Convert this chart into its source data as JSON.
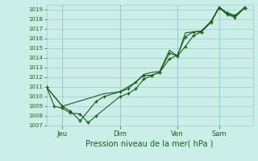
{
  "background_color": "#cceee8",
  "grid_color": "#99cccc",
  "line_color": "#1a5c1a",
  "title": "Pression niveau de la mer( hPa )",
  "ylim": [
    1007,
    1019.5
  ],
  "yticks": [
    1007,
    1008,
    1009,
    1010,
    1011,
    1012,
    1013,
    1014,
    1015,
    1016,
    1017,
    1018,
    1019
  ],
  "xtick_labels": [
    "Jeu",
    "Dim",
    "Ven",
    "Sam"
  ],
  "xtick_positions": [
    0.08,
    0.37,
    0.66,
    0.87
  ],
  "xlim": [
    0.0,
    1.04
  ],
  "series1_x": [
    0.0,
    0.04,
    0.08,
    0.12,
    0.17,
    0.21,
    0.25,
    0.37,
    0.41,
    0.45,
    0.49,
    0.53,
    0.57,
    0.62,
    0.66,
    0.7,
    0.74,
    0.78,
    0.83,
    0.87,
    0.91,
    0.95,
    1.0
  ],
  "series1_y": [
    1011.0,
    1009.0,
    1008.8,
    1008.3,
    1008.2,
    1007.3,
    1008.0,
    1010.0,
    1010.3,
    1010.8,
    1011.8,
    1012.2,
    1012.5,
    1013.9,
    1014.3,
    1016.2,
    1016.7,
    1016.7,
    1017.7,
    1019.2,
    1018.7,
    1018.4,
    1019.2
  ],
  "series2_x": [
    0.0,
    0.08,
    0.12,
    0.17,
    0.25,
    0.29,
    0.37,
    0.41,
    0.45,
    0.49,
    0.53,
    0.57,
    0.62,
    0.66,
    0.7,
    0.74,
    0.78,
    0.83,
    0.87,
    0.91,
    0.95,
    1.0
  ],
  "series2_y": [
    1011.0,
    1009.0,
    1008.5,
    1007.5,
    1009.5,
    1010.0,
    1010.5,
    1010.8,
    1011.5,
    1012.2,
    1012.2,
    1012.5,
    1014.5,
    1014.2,
    1015.2,
    1016.3,
    1016.7,
    1017.8,
    1019.2,
    1018.5,
    1018.2,
    1019.2
  ],
  "series3_x": [
    0.0,
    0.08,
    0.29,
    0.37,
    0.41,
    0.45,
    0.49,
    0.53,
    0.57,
    0.62,
    0.66,
    0.7,
    0.74,
    0.78,
    0.83,
    0.87,
    0.91,
    0.95,
    1.0
  ],
  "series3_y": [
    1011.0,
    1009.0,
    1010.3,
    1010.5,
    1011.0,
    1011.5,
    1012.3,
    1012.5,
    1012.6,
    1014.8,
    1014.2,
    1016.6,
    1016.7,
    1016.8,
    1017.8,
    1019.3,
    1018.6,
    1018.3,
    1019.3
  ]
}
